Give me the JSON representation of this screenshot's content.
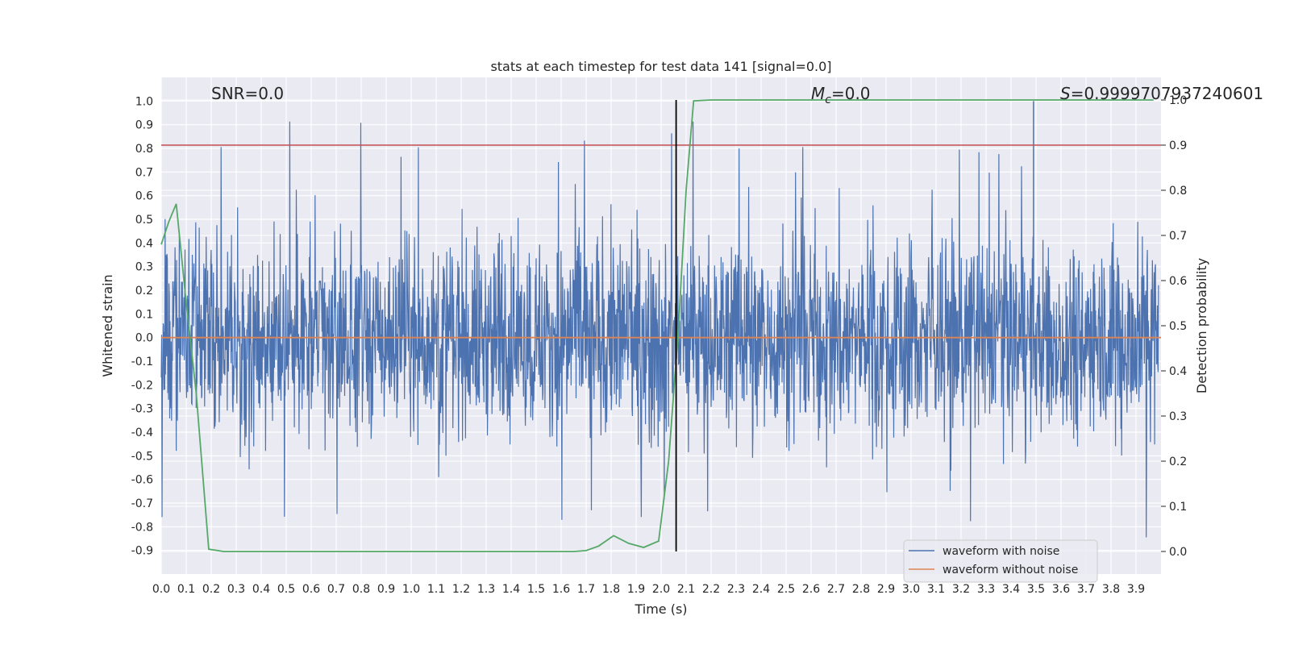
{
  "chart_data": {
    "type": "line",
    "title": "stats at each timestep for test data 141 [signal=0.0]",
    "xlabel": "Time (s)",
    "ylabel": "Whitened strain",
    "ylabel_right": "Detection probability",
    "xlim": [
      0.0,
      4.0
    ],
    "ylim": [
      -1.0,
      1.1
    ],
    "ylim_right": [
      -0.05,
      1.05
    ],
    "grid": true,
    "legend_position": "lower-right",
    "xticks": [
      "0.0",
      "0.1",
      "0.2",
      "0.3",
      "0.4",
      "0.5",
      "0.6",
      "0.7",
      "0.8",
      "0.9",
      "1.0",
      "1.1",
      "1.2",
      "1.3",
      "1.4",
      "1.5",
      "1.6",
      "1.7",
      "1.8",
      "1.9",
      "2.0",
      "2.1",
      "2.2",
      "2.3",
      "2.4",
      "2.5",
      "2.6",
      "2.7",
      "2.8",
      "2.9",
      "3.0",
      "3.1",
      "3.2",
      "3.3",
      "3.4",
      "3.5",
      "3.6",
      "3.7",
      "3.8",
      "3.9"
    ],
    "yticks": [
      "-0.9",
      "-0.8",
      "-0.7",
      "-0.6",
      "-0.5",
      "-0.4",
      "-0.3",
      "-0.2",
      "-0.1",
      "0.0",
      "0.1",
      "0.2",
      "0.3",
      "0.4",
      "0.5",
      "0.6",
      "0.7",
      "0.8",
      "0.9",
      "1.0"
    ],
    "yticks_right": [
      "0.0",
      "0.1",
      "0.2",
      "0.3",
      "0.4",
      "0.5",
      "0.6",
      "0.7",
      "0.8",
      "0.9",
      "1.0"
    ],
    "annotations": {
      "snr": "SNR=0.0",
      "mc_symbol": "M",
      "mc_sub": "c",
      "mc_value": "=0.0",
      "s_symbol": "S",
      "s_value": "=0.9999707937240601"
    },
    "threshold_right": 0.9,
    "vline_x": 2.06,
    "series": [
      {
        "name": "waveform with noise",
        "color": "#4c72b0",
        "axis": "left",
        "noise_envelope": {
          "typical_min": -0.45,
          "typical_max": 0.55,
          "peak_min": -0.92,
          "peak_max": 1.0
        }
      },
      {
        "name": "waveform without noise",
        "color": "#dd8452",
        "axis": "left",
        "values_constant": 0.0
      },
      {
        "name": "",
        "color": "#55a868",
        "axis": "right",
        "x": [
          0.0,
          0.03,
          0.06,
          0.1,
          0.14,
          0.19,
          0.25,
          0.35,
          0.5,
          1.0,
          1.5,
          1.65,
          1.7,
          1.75,
          1.81,
          1.87,
          1.93,
          1.99,
          2.03,
          2.07,
          2.1,
          2.13,
          2.2,
          2.5,
          3.0,
          3.5,
          3.97
        ],
        "values": [
          0.68,
          0.73,
          0.77,
          0.55,
          0.35,
          0.005,
          0.0,
          0.0,
          0.0,
          0.0,
          0.0,
          0.0,
          0.002,
          0.012,
          0.035,
          0.018,
          0.009,
          0.023,
          0.2,
          0.5,
          0.8,
          0.998,
          1.0,
          1.0,
          1.0,
          1.0,
          1.0
        ]
      }
    ],
    "threshold_color": "#c44e52"
  }
}
